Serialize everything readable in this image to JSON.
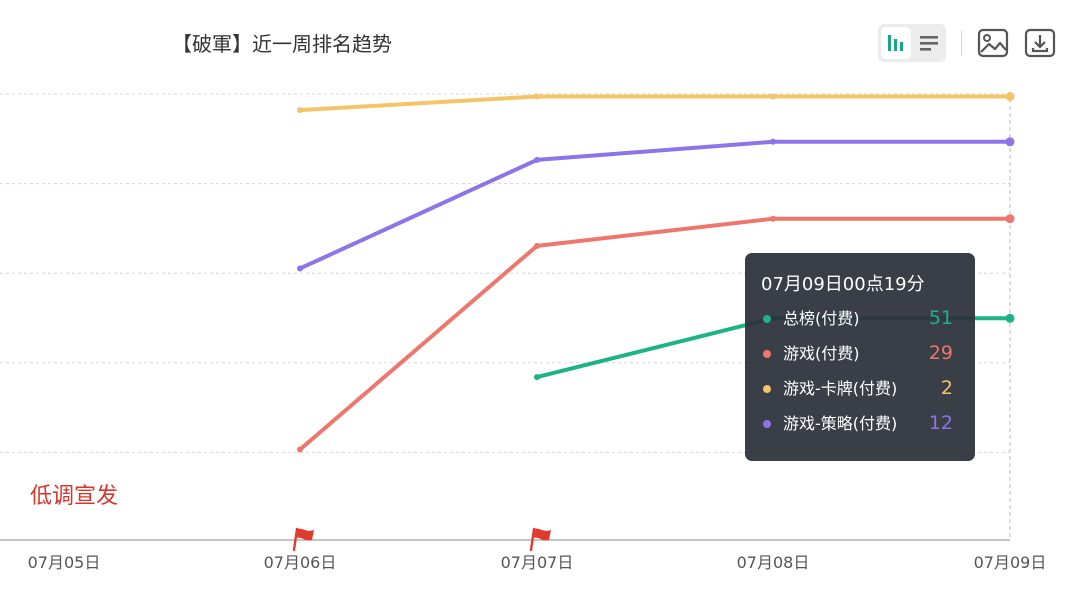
{
  "header": {
    "title": "【破軍】近一周排名趋势",
    "toolbar": {
      "bar_view_icon": "bar-chart-icon",
      "list_view_icon": "list-icon",
      "save_image_icon": "image-icon",
      "download_icon": "download-icon",
      "accent_color": "#1aa67e"
    }
  },
  "chart_data": {
    "type": "line",
    "title": "【破軍】近一周排名趋势",
    "x": [
      "07月05日",
      "07月06日",
      "07月07日",
      "07月08日",
      "07月09日"
    ],
    "y_inverted": true,
    "ylim": [
      1,
      100
    ],
    "grid": true,
    "series": [
      {
        "name": "总榜(付费)",
        "color": "#1db386",
        "values": [
          null,
          null,
          64,
          51,
          51
        ]
      },
      {
        "name": "游戏(付费)",
        "color": "#ef766c",
        "values": [
          null,
          80,
          35,
          29,
          29
        ]
      },
      {
        "name": "游戏-卡牌(付费)",
        "color": "#f5c468",
        "values": [
          null,
          5,
          2,
          2,
          2
        ]
      },
      {
        "name": "游戏-策略(付费)",
        "color": "#8d74e8",
        "values": [
          null,
          40,
          16,
          12,
          12
        ]
      }
    ],
    "event_markers": [
      {
        "x": "07月06日",
        "icon": "flag-icon",
        "color": "#e23a2e"
      },
      {
        "x": "07月07日",
        "icon": "flag-icon",
        "color": "#e23a2e"
      }
    ]
  },
  "tooltip": {
    "time": "07月09日00点19分",
    "rows": [
      {
        "name": "总榜(付费)",
        "value": "51",
        "color": "#1db386"
      },
      {
        "name": "游戏(付费)",
        "value": "29",
        "color": "#ef766c"
      },
      {
        "name": "游戏-卡牌(付费)",
        "value": "2",
        "color": "#f5c468"
      },
      {
        "name": "游戏-策略(付费)",
        "value": "12",
        "color": "#8d74e8"
      }
    ]
  },
  "watermark": {
    "text": "低调宣发",
    "color": "#d9342b"
  }
}
